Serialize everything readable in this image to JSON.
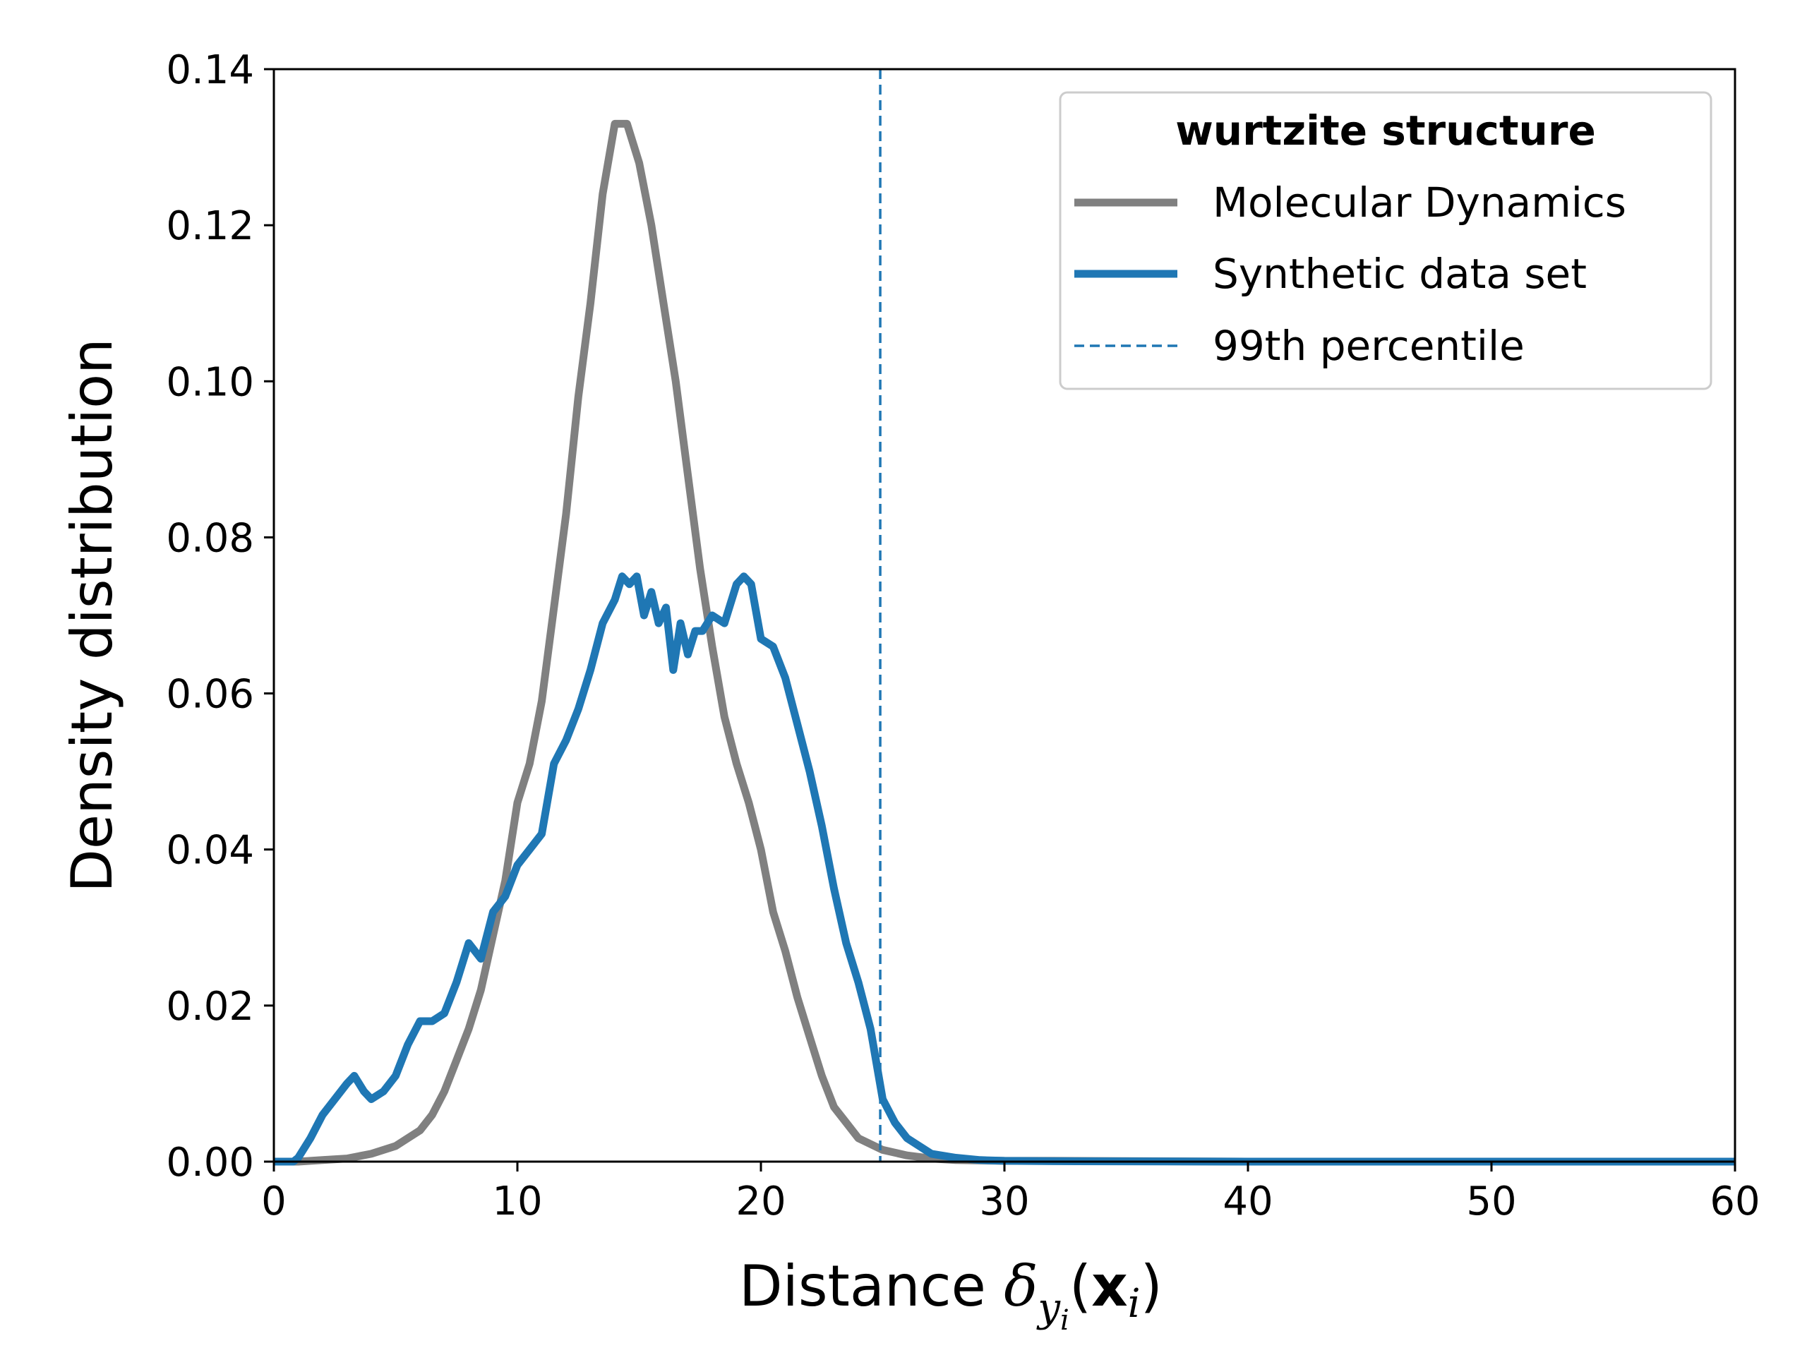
{
  "chart_data": {
    "type": "line",
    "title": "",
    "xlabel": "Distance δ_{y_i}(x_i)",
    "xlabel_parts": {
      "main": "Distance ",
      "delta": "δ",
      "sub": "y",
      "subsub": "i",
      "open": "(",
      "bold_x": "x",
      "x_sub": "i",
      "close": ")"
    },
    "ylabel": "Density distribution",
    "xlim": [
      0,
      60
    ],
    "ylim": [
      0,
      0.14
    ],
    "xticks": [
      0,
      10,
      20,
      30,
      40,
      50,
      60
    ],
    "xtick_labels": [
      "0",
      "10",
      "20",
      "30",
      "40",
      "50",
      "60"
    ],
    "yticks": [
      0.0,
      0.02,
      0.04,
      0.06,
      0.08,
      0.1,
      0.12,
      0.14
    ],
    "ytick_labels": [
      "0.00",
      "0.02",
      "0.04",
      "0.06",
      "0.08",
      "0.10",
      "0.12",
      "0.14"
    ],
    "grid": false,
    "legend": {
      "title": "wurtzite structure",
      "placement": "top-right",
      "entries": [
        "Molecular Dynamics",
        "Synthetic data set",
        "99th percentile"
      ]
    },
    "series": [
      {
        "name": "Molecular Dynamics",
        "color": "#808080",
        "x": [
          0,
          1,
          2,
          3,
          4,
          4.5,
          5,
          5.5,
          6,
          6.5,
          7,
          7.5,
          8,
          8.5,
          9,
          9.5,
          10,
          10.5,
          11,
          11.5,
          12,
          12.5,
          13,
          13.5,
          14,
          14.5,
          15,
          15.5,
          16,
          16.5,
          17,
          17.5,
          18,
          18.5,
          19,
          19.5,
          20,
          20.5,
          21,
          21.5,
          22,
          22.5,
          23,
          23.5,
          24,
          25,
          26,
          27,
          28,
          30,
          32,
          40,
          50,
          60
        ],
        "values": [
          0,
          0,
          0.0002,
          0.0004,
          0.001,
          0.0015,
          0.002,
          0.003,
          0.004,
          0.006,
          0.009,
          0.013,
          0.017,
          0.022,
          0.029,
          0.036,
          0.046,
          0.051,
          0.059,
          0.071,
          0.083,
          0.098,
          0.11,
          0.124,
          0.133,
          0.133,
          0.128,
          0.12,
          0.11,
          0.1,
          0.088,
          0.076,
          0.066,
          0.057,
          0.051,
          0.046,
          0.04,
          0.032,
          0.027,
          0.021,
          0.016,
          0.011,
          0.007,
          0.005,
          0.003,
          0.0015,
          0.0008,
          0.0004,
          0.0002,
          0.0001,
          0.0001,
          0,
          0,
          0
        ]
      },
      {
        "name": "Synthetic data set",
        "color": "#1f77b4",
        "x": [
          0,
          0.8,
          1,
          1.5,
          2,
          2.5,
          3,
          3.3,
          3.7,
          4,
          4.5,
          5,
          5.5,
          6,
          6.5,
          7,
          7.5,
          8,
          8.5,
          9,
          9.5,
          10,
          10.5,
          11,
          11.5,
          12,
          12.5,
          13,
          13.5,
          14,
          14.3,
          14.6,
          14.9,
          15.2,
          15.5,
          15.8,
          16.1,
          16.4,
          16.7,
          17,
          17.3,
          17.6,
          18,
          18.5,
          19,
          19.3,
          19.6,
          20,
          20.5,
          21,
          21.5,
          22,
          22.5,
          23,
          23.5,
          24,
          24.5,
          25,
          25.5,
          26,
          26.5,
          27,
          28,
          29,
          30,
          32,
          40,
          50,
          60
        ],
        "values": [
          0,
          0,
          0.0005,
          0.003,
          0.006,
          0.008,
          0.01,
          0.011,
          0.009,
          0.008,
          0.009,
          0.011,
          0.015,
          0.018,
          0.018,
          0.019,
          0.023,
          0.028,
          0.026,
          0.032,
          0.034,
          0.038,
          0.04,
          0.042,
          0.051,
          0.054,
          0.058,
          0.063,
          0.069,
          0.072,
          0.075,
          0.074,
          0.075,
          0.07,
          0.073,
          0.069,
          0.071,
          0.063,
          0.069,
          0.065,
          0.068,
          0.068,
          0.07,
          0.069,
          0.074,
          0.075,
          0.074,
          0.067,
          0.066,
          0.062,
          0.056,
          0.05,
          0.043,
          0.035,
          0.028,
          0.023,
          0.017,
          0.008,
          0.005,
          0.003,
          0.002,
          0.001,
          0.0005,
          0.0002,
          0.0001,
          5e-05,
          0,
          0,
          0
        ]
      }
    ],
    "vlines": [
      {
        "name": "99th percentile",
        "x": 24.9,
        "color": "#1f77b4",
        "style": "dashed"
      }
    ]
  }
}
